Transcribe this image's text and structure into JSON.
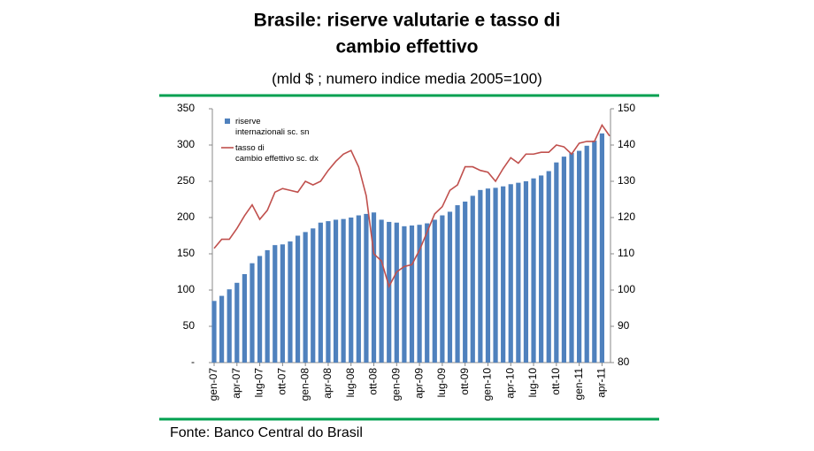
{
  "chart_data": {
    "type": "bar-line",
    "title_line1": "Brasile: riserve valutarie e tasso di",
    "title_line2": "cambio effettivo",
    "subtitle": "(mld $ ; numero indice media 2005=100)",
    "source": "Fonte: Banco Central do Brasil",
    "categories": [
      "gen-07",
      null,
      null,
      "apr-07",
      null,
      null,
      "lug-07",
      null,
      null,
      "ott-07",
      null,
      null,
      "gen-08",
      null,
      null,
      "apr-08",
      null,
      null,
      "lug-08",
      null,
      null,
      "ott-08",
      null,
      null,
      "gen-09",
      null,
      null,
      "apr-09",
      null,
      null,
      "lug-09",
      null,
      null,
      "ott-09",
      null,
      null,
      "gen-10",
      null,
      null,
      "apr-10",
      null,
      null,
      "lug-10",
      null,
      null,
      "ott-10",
      null,
      null,
      "gen-11",
      null,
      null,
      "apr-11",
      null
    ],
    "series": [
      {
        "name": "riserve internazionali sc. sn",
        "type": "bar",
        "color": "#4f81bd",
        "axis": "y",
        "values": [
          85,
          92,
          101,
          110,
          122,
          137,
          147,
          155,
          162,
          163,
          167,
          175,
          180,
          185,
          193,
          195,
          197,
          198,
          200,
          203,
          205,
          207,
          197,
          194,
          193,
          188,
          189,
          190,
          192,
          197,
          203,
          208,
          217,
          222,
          230,
          238,
          240,
          241,
          243,
          246,
          248,
          250,
          254,
          258,
          264,
          276,
          284,
          289,
          292,
          299,
          306,
          316,
          null
        ]
      },
      {
        "name": "tasso di cambio effettivo sc. dx",
        "type": "line",
        "color": "#c0504d",
        "axis": "y2",
        "values": [
          111.5,
          114,
          114,
          117,
          120.5,
          123.5,
          119.5,
          122,
          127,
          128,
          127.5,
          127,
          130,
          129,
          130,
          133,
          135.5,
          137.5,
          138.5,
          134,
          126,
          110,
          108,
          101,
          105,
          106.5,
          107,
          111,
          116,
          121,
          123,
          127.5,
          129,
          134,
          134,
          133,
          132.5,
          130,
          133.5,
          136.5,
          135,
          137.5,
          137.5,
          138,
          138,
          140,
          139.5,
          137.5,
          140.5,
          141,
          141,
          145.5,
          142.5
        ]
      }
    ],
    "ylim": [
      0,
      350
    ],
    "yticks": [
      {
        "value": 0,
        "label": "-"
      },
      50,
      100,
      150,
      200,
      250,
      300,
      350
    ],
    "y2lim": [
      80,
      150
    ],
    "y2ticks": [
      80,
      90,
      100,
      110,
      120,
      130,
      140,
      150
    ],
    "accent_color": "#00a050"
  }
}
